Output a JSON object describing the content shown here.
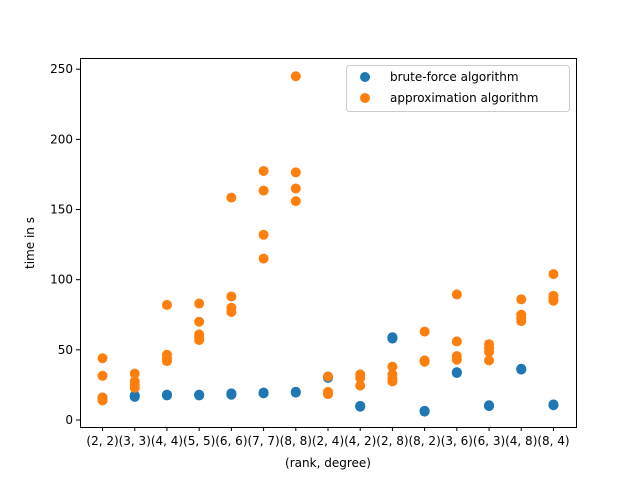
{
  "chart_data": {
    "type": "scatter",
    "title": "",
    "xlabel": "(rank, degree)",
    "ylabel": "time in s",
    "categories": [
      "(2, 2)",
      "(3, 3)",
      "(4, 4)",
      "(5, 5)",
      "(6, 6)",
      "(7, 7)",
      "(8, 8)",
      "(2, 4)",
      "(4, 2)",
      "(2, 8)",
      "(8, 2)",
      "(3, 6)",
      "(6, 3)",
      "(4, 8)",
      "(8, 4)"
    ],
    "ylim": [
      -5,
      258
    ],
    "yticks": [
      0,
      50,
      100,
      150,
      200,
      250
    ],
    "grid": false,
    "legend_position": "top-right",
    "series": [
      {
        "name": "brute-force algorithm",
        "color": "#1f77b4",
        "points": [
          [
            0,
            15
          ],
          [
            0,
            16
          ],
          [
            0,
            15.5
          ],
          [
            1,
            16.5
          ],
          [
            1,
            17
          ],
          [
            1,
            17.5
          ],
          [
            2,
            17.5
          ],
          [
            2,
            18
          ],
          [
            2,
            18
          ],
          [
            3,
            17.5
          ],
          [
            3,
            18
          ],
          [
            3,
            18
          ],
          [
            4,
            18
          ],
          [
            4,
            18.5
          ],
          [
            4,
            19
          ],
          [
            5,
            19
          ],
          [
            5,
            19.5
          ],
          [
            5,
            19.5
          ],
          [
            6,
            19.5
          ],
          [
            6,
            20
          ],
          [
            6,
            20
          ],
          [
            7,
            30
          ],
          [
            7,
            31
          ],
          [
            7,
            30.5
          ],
          [
            8,
            9.5
          ],
          [
            8,
            10
          ],
          [
            8,
            10
          ],
          [
            9,
            58
          ],
          [
            9,
            59
          ],
          [
            9,
            58.5
          ],
          [
            10,
            6
          ],
          [
            10,
            6.5
          ],
          [
            10,
            6.5
          ],
          [
            11,
            33.5
          ],
          [
            11,
            34
          ],
          [
            11,
            34
          ],
          [
            12,
            10
          ],
          [
            12,
            10
          ],
          [
            12,
            10.5
          ],
          [
            13,
            36
          ],
          [
            13,
            36
          ],
          [
            13,
            36.5
          ],
          [
            14,
            10.5
          ],
          [
            14,
            11
          ],
          [
            14,
            11
          ]
        ]
      },
      {
        "name": "approximation algorithm",
        "color": "#ff7f0e",
        "points": [
          [
            0,
            44
          ],
          [
            0,
            31.5
          ],
          [
            0,
            16
          ],
          [
            0,
            14
          ],
          [
            1,
            33
          ],
          [
            1,
            27.5
          ],
          [
            1,
            25
          ],
          [
            1,
            23
          ],
          [
            2,
            82
          ],
          [
            2,
            46.5
          ],
          [
            2,
            44
          ],
          [
            2,
            42
          ],
          [
            3,
            83
          ],
          [
            3,
            70
          ],
          [
            3,
            61
          ],
          [
            3,
            59
          ],
          [
            3,
            57
          ],
          [
            4,
            158.5
          ],
          [
            4,
            88
          ],
          [
            4,
            80
          ],
          [
            4,
            77
          ],
          [
            5,
            177.5
          ],
          [
            5,
            163.5
          ],
          [
            5,
            132
          ],
          [
            5,
            115
          ],
          [
            6,
            245
          ],
          [
            6,
            176.5
          ],
          [
            6,
            165
          ],
          [
            6,
            156
          ],
          [
            7,
            31
          ],
          [
            7,
            20
          ],
          [
            7,
            18.5
          ],
          [
            8,
            32.5
          ],
          [
            8,
            30
          ],
          [
            8,
            24.5
          ],
          [
            9,
            38
          ],
          [
            9,
            32.5
          ],
          [
            9,
            29.5
          ],
          [
            9,
            27.5
          ],
          [
            10,
            63
          ],
          [
            10,
            42.5
          ],
          [
            10,
            41.5
          ],
          [
            11,
            89.5
          ],
          [
            11,
            56
          ],
          [
            11,
            45.5
          ],
          [
            11,
            43
          ],
          [
            12,
            54
          ],
          [
            12,
            51.5
          ],
          [
            12,
            48.5
          ],
          [
            12,
            42.5
          ],
          [
            13,
            86
          ],
          [
            13,
            75
          ],
          [
            13,
            72.5
          ],
          [
            13,
            70.5
          ],
          [
            14,
            104
          ],
          [
            14,
            88.5
          ],
          [
            14,
            86.5
          ],
          [
            14,
            85
          ]
        ]
      }
    ]
  }
}
